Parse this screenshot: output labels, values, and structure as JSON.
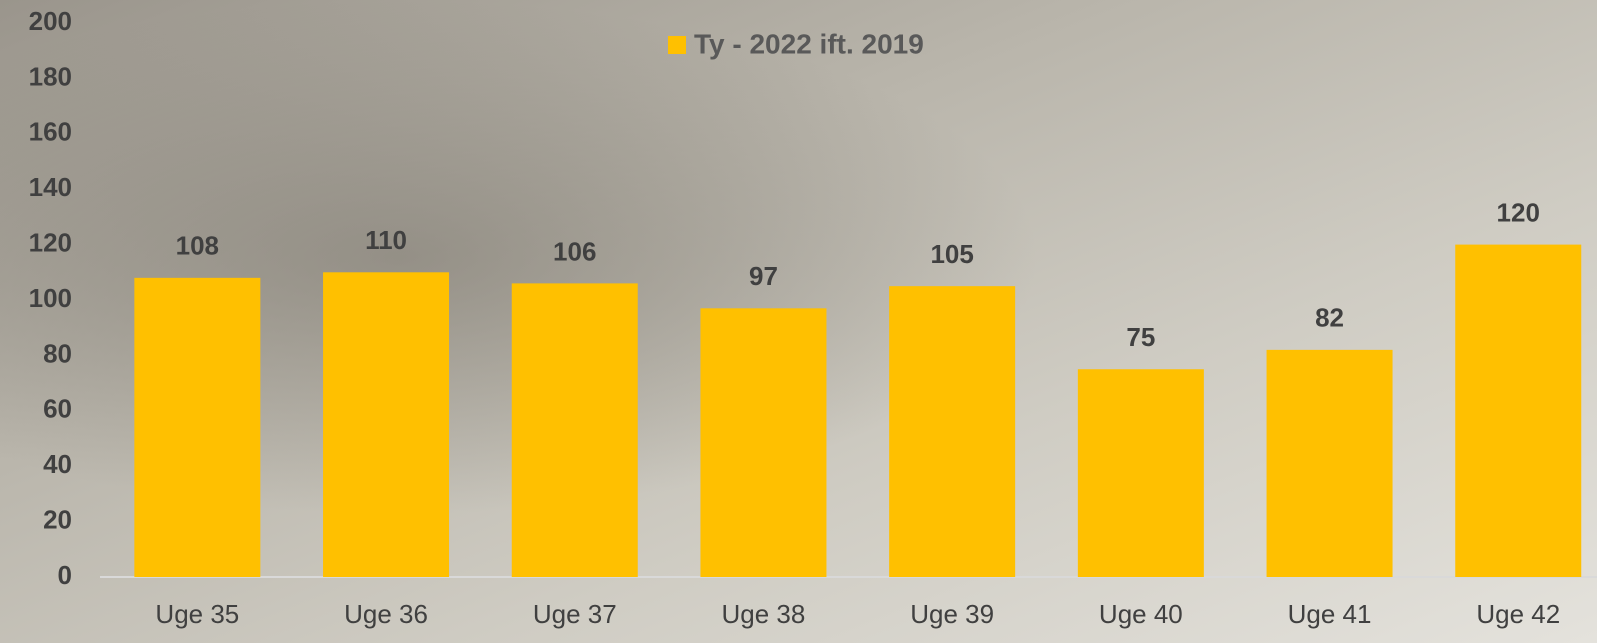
{
  "chart_data": {
    "type": "bar",
    "categories": [
      "Uge 35",
      "Uge 36",
      "Uge 37",
      "Uge 38",
      "Uge 39",
      "Uge 40",
      "Uge 41",
      "Uge 42"
    ],
    "series": [
      {
        "name": "Ty - 2022 ift. 2019",
        "color": "#ffc000",
        "values": [
          108,
          110,
          106,
          97,
          105,
          75,
          82,
          120
        ]
      }
    ],
    "ylim": [
      0,
      200
    ],
    "yticks": [
      0,
      20,
      40,
      60,
      80,
      100,
      120,
      140,
      160,
      180,
      200
    ],
    "legend": "top",
    "grid": false
  }
}
